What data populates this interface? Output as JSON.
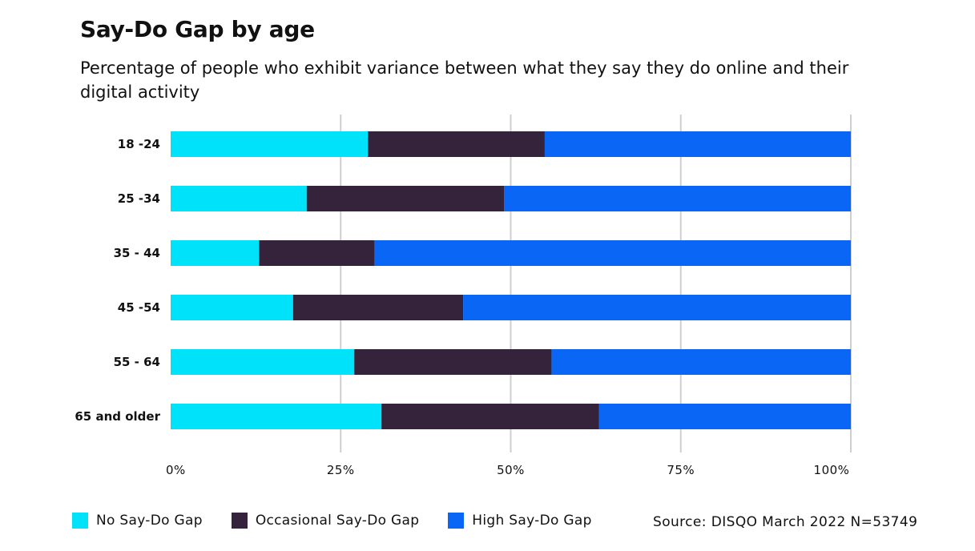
{
  "chart_data": {
    "type": "bar",
    "orientation": "horizontal",
    "stacked": true,
    "title": "Say-Do Gap by age",
    "subtitle": "Percentage of people who exhibit variance between what they say they do online and their digital activity",
    "categories": [
      "18 -24",
      "25 -34",
      "35 - 44",
      "45 -54",
      "55 - 64",
      "65 and older"
    ],
    "series": [
      {
        "name": "No Say-Do Gap",
        "color": "#00e1fa",
        "values": [
          29,
          20,
          13,
          18,
          27,
          31
        ]
      },
      {
        "name": "Occasional Say-Do Gap",
        "color": "#35233b",
        "values": [
          26,
          29,
          17,
          25,
          29,
          32
        ]
      },
      {
        "name": "High Say-Do Gap",
        "color": "#0a67f5",
        "values": [
          45,
          51,
          70,
          57,
          44,
          37
        ]
      }
    ],
    "xlim": [
      0,
      100
    ],
    "x_ticks": [
      "0%",
      "25%",
      "50%",
      "75%",
      "100%"
    ],
    "grid": "vertical",
    "legend_position": "bottom-left",
    "source": "Source: DISQO March 2022 N=53749"
  }
}
